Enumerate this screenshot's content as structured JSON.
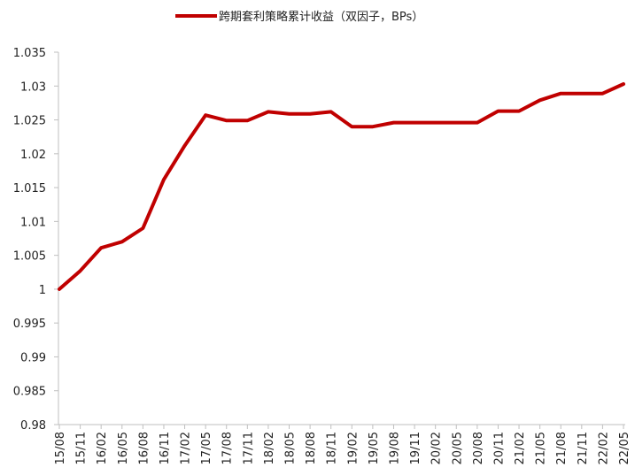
{
  "chart_data": {
    "type": "line",
    "title": "",
    "xlabel": "",
    "ylabel": "",
    "ylim": [
      0.98,
      1.035
    ],
    "yticks": [
      "0.98",
      "0.985",
      "0.99",
      "0.995",
      "1",
      "1.005",
      "1.01",
      "1.015",
      "1.02",
      "1.025",
      "1.03",
      "1.035"
    ],
    "ytick_values": [
      0.98,
      0.985,
      0.99,
      0.995,
      1.0,
      1.005,
      1.01,
      1.015,
      1.02,
      1.025,
      1.03,
      1.035
    ],
    "grid": false,
    "legend_position": "top-center",
    "categories": [
      "15/08",
      "15/11",
      "16/02",
      "16/05",
      "16/08",
      "16/11",
      "17/02",
      "17/05",
      "17/08",
      "17/11",
      "18/02",
      "18/05",
      "18/08",
      "18/11",
      "19/02",
      "19/05",
      "19/08",
      "19/11",
      "20/02",
      "20/05",
      "20/08",
      "20/11",
      "21/02",
      "21/05",
      "21/08",
      "21/11",
      "22/02",
      "22/05"
    ],
    "series": [
      {
        "name": "跨期套利策略累计收益（双因子，BPs）",
        "color": "#c00000",
        "values": [
          1.0,
          1.0027,
          1.0061,
          1.007,
          1.009,
          1.0162,
          1.0212,
          1.0257,
          1.0249,
          1.0249,
          1.0262,
          1.0259,
          1.0259,
          1.0262,
          1.024,
          1.024,
          1.0246,
          1.0246,
          1.0246,
          1.0246,
          1.0246,
          1.0263,
          1.0263,
          1.0279,
          1.0289,
          1.0289,
          1.0289,
          1.0303
        ]
      }
    ]
  }
}
